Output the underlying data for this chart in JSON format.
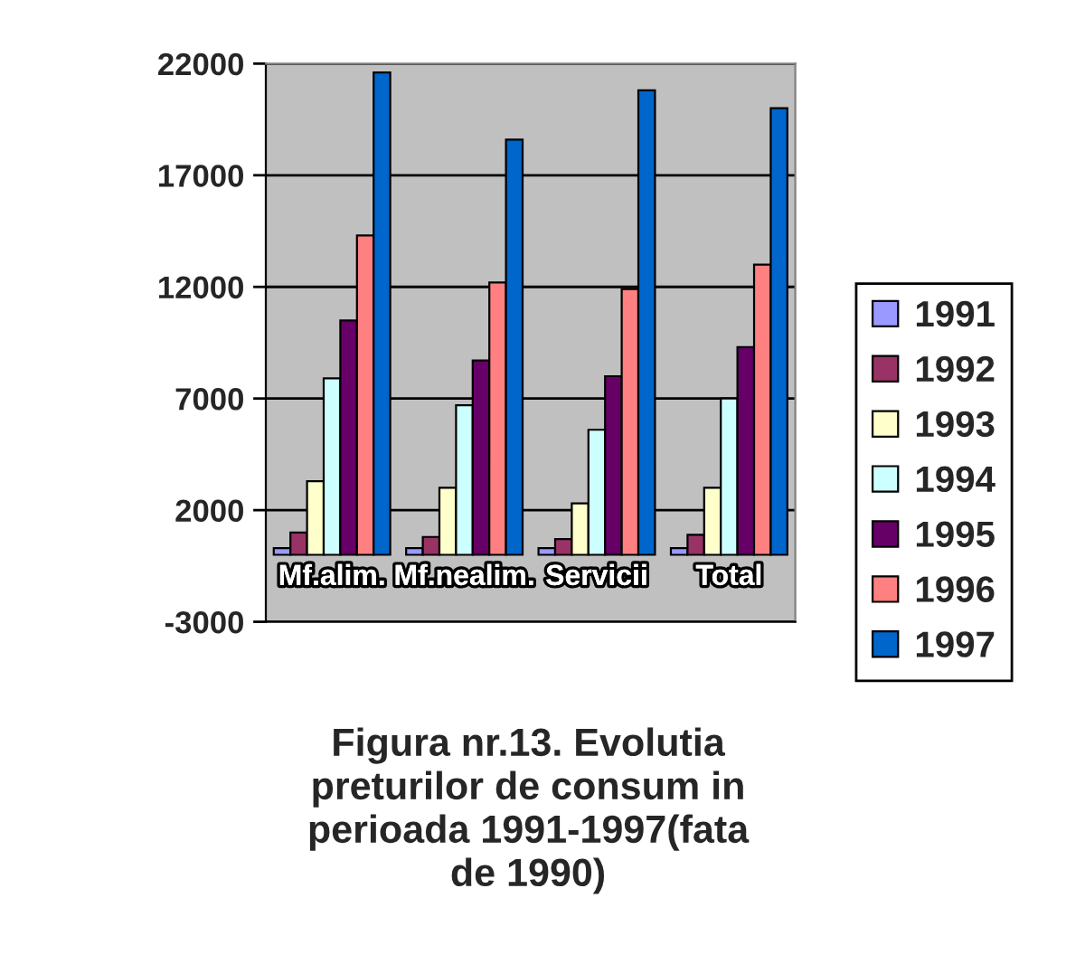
{
  "chart_data": {
    "type": "bar",
    "title": "Figura nr.13. Evolutia preturilor de consum in perioada 1991-1997(fata de 1990)",
    "categories": [
      "Mf.alim.",
      "Mf.nealim.",
      "Servicii",
      "Total"
    ],
    "series": [
      {
        "name": "1991",
        "color": "#9999ff",
        "values": [
          300,
          300,
          300,
          300
        ]
      },
      {
        "name": "1992",
        "color": "#993366",
        "values": [
          1000,
          800,
          700,
          900
        ]
      },
      {
        "name": "1993",
        "color": "#ffffcc",
        "values": [
          3300,
          3000,
          2300,
          3000
        ]
      },
      {
        "name": "1994",
        "color": "#ccffff",
        "values": [
          7900,
          6700,
          5600,
          7000
        ]
      },
      {
        "name": "1995",
        "color": "#660066",
        "values": [
          10500,
          8700,
          8000,
          9300
        ]
      },
      {
        "name": "1996",
        "color": "#ff8080",
        "values": [
          14300,
          12200,
          11900,
          13000
        ]
      },
      {
        "name": "1997",
        "color": "#0066cc",
        "values": [
          21600,
          18600,
          20800,
          20000
        ]
      }
    ],
    "ylim": [
      -3000,
      22000
    ],
    "yticks": [
      -3000,
      2000,
      7000,
      12000,
      17000,
      22000
    ],
    "grid": "y",
    "legend": "right"
  }
}
